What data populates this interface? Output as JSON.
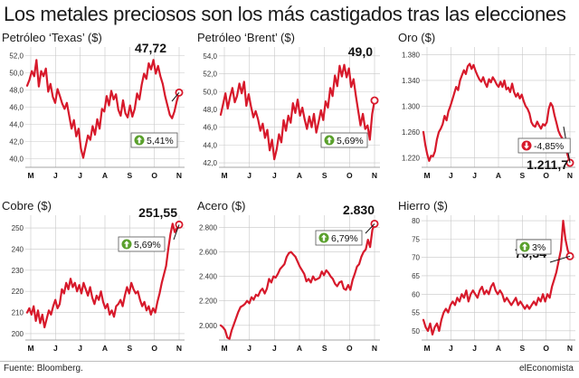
{
  "title": "Los metales preciosos son los más castigados tras las elecciones",
  "footer": {
    "source": "Fuente: Bloomberg.",
    "brand": "elEconomista"
  },
  "colors": {
    "line": "#d7192b",
    "grid": "#c8c8c8",
    "badge_up": "#5aa02c",
    "badge_down": "#d7192b"
  },
  "chart_data": [
    {
      "type": "line",
      "title": "Petróleo ‘Texas’ ($)",
      "x_ticks": [
        "M",
        "J",
        "J",
        "A",
        "S",
        "O",
        "N"
      ],
      "y_ticks": [
        "40,0",
        "42,0",
        "44,0",
        "46,0",
        "48,0",
        "50,0",
        "52,0"
      ],
      "ylim": [
        39,
        53
      ],
      "callout": "47,72",
      "badge": {
        "text": "5,41%",
        "direction": "up"
      },
      "series": [
        {
          "values": [
            48.5,
            49.2,
            50.2,
            49.6,
            51.5,
            48.4,
            50.2,
            49.6,
            50.5,
            47.8,
            48.7,
            47.2,
            46.5,
            48.1,
            47.3,
            46.4,
            45.8,
            46.5,
            45.0,
            43.5,
            44.5,
            42.6,
            43.5,
            41.2,
            40.1,
            41.4,
            42.7,
            42.2,
            43.8,
            42.8,
            44.6,
            43.5,
            45.8,
            45.5,
            47.3,
            46.2,
            47.9,
            46.9,
            47.5,
            45.7,
            45.0,
            46.8,
            45.3,
            44.8,
            46.2,
            44.9,
            45.8,
            47.6,
            46.9,
            48.6,
            49.9,
            49.3,
            51.1,
            50.4,
            51.5,
            49.9,
            50.8,
            49.6,
            48.7,
            47.3,
            46.2,
            45.1,
            44.7,
            45.5,
            46.7,
            47.7
          ]
        }
      ]
    },
    {
      "type": "line",
      "title": "Petróleo ‘Brent’ ($)",
      "x_ticks": [
        "M",
        "J",
        "J",
        "A",
        "S",
        "O",
        "N"
      ],
      "y_ticks": [
        "42,0",
        "44,0",
        "46,0",
        "48,0",
        "50,0",
        "52,0",
        "54,0"
      ],
      "ylim": [
        41.5,
        55
      ],
      "callout": "49,0",
      "badge": {
        "text": "5,69%",
        "direction": "up"
      },
      "series": [
        {
          "values": [
            47.4,
            48.6,
            49.8,
            48.1,
            49.4,
            50.4,
            48.8,
            49.5,
            50.9,
            49.8,
            51.1,
            48.4,
            49.7,
            48.3,
            47.1,
            47.8,
            46.9,
            45.6,
            46.4,
            44.8,
            45.7,
            43.4,
            44.6,
            42.4,
            43.5,
            45.2,
            44.3,
            46.8,
            45.6,
            47.3,
            46.5,
            48.7,
            47.6,
            49.1,
            47.3,
            48.2,
            46.9,
            45.8,
            47.2,
            46.0,
            47.5,
            45.4,
            46.6,
            47.9,
            46.8,
            48.9,
            48.2,
            50.4,
            49.5,
            51.8,
            50.6,
            52.9,
            51.7,
            53.0,
            51.6,
            52.6,
            50.5,
            51.4,
            49.5,
            47.8,
            46.2,
            47.5,
            45.8,
            46.2,
            44.6,
            47.5,
            49.0
          ]
        }
      ]
    },
    {
      "type": "line",
      "title": "Oro ($)",
      "x_ticks": [
        "M",
        "J",
        "J",
        "A",
        "S",
        "O",
        "N"
      ],
      "y_ticks": [
        "1.220",
        "1.260",
        "1.300",
        "1.340",
        "1.380"
      ],
      "ylim": [
        1205,
        1392
      ],
      "callout": "1.211,7",
      "badge": {
        "text": "-4,85%",
        "direction": "down"
      },
      "series": [
        {
          "values": [
            1260,
            1240,
            1225,
            1215,
            1223,
            1222,
            1230,
            1248,
            1260,
            1265,
            1272,
            1285,
            1278,
            1292,
            1300,
            1310,
            1320,
            1330,
            1325,
            1340,
            1348,
            1356,
            1350,
            1362,
            1366,
            1358,
            1364,
            1355,
            1348,
            1342,
            1338,
            1345,
            1336,
            1330,
            1342,
            1337,
            1345,
            1340,
            1334,
            1330,
            1338,
            1330,
            1340,
            1326,
            1329,
            1322,
            1335,
            1322,
            1315,
            1320,
            1312,
            1318,
            1308,
            1300,
            1296,
            1289,
            1275,
            1270,
            1268,
            1276,
            1270,
            1265,
            1272,
            1270,
            1275,
            1296,
            1305,
            1300,
            1286,
            1274,
            1262,
            1255,
            1250,
            1240,
            1232,
            1222,
            1212
          ]
        }
      ]
    },
    {
      "type": "line",
      "title": "Cobre ($)",
      "x_ticks": [
        "M",
        "J",
        "J",
        "A",
        "S",
        "O",
        "N"
      ],
      "y_ticks": [
        "200",
        "210",
        "220",
        "230",
        "240",
        "250"
      ],
      "ylim": [
        197,
        256
      ],
      "callout": "251,55",
      "badge": {
        "text": "5,69%",
        "direction": "up"
      },
      "series": [
        {
          "values": [
            210,
            212,
            209,
            213,
            206,
            211,
            205,
            209,
            203,
            207,
            211,
            209,
            213,
            216,
            212,
            214,
            221,
            219,
            224,
            221,
            226,
            222,
            224,
            220,
            223,
            219,
            224,
            221,
            218,
            222,
            217,
            214,
            218,
            216,
            220,
            215,
            212,
            214,
            209,
            211,
            208,
            213,
            214,
            216,
            213,
            218,
            222,
            219,
            224,
            221,
            219,
            220,
            216,
            213,
            215,
            211,
            213,
            209,
            212,
            210,
            215,
            219,
            224,
            228,
            232,
            240,
            247,
            252,
            248,
            250,
            251.55
          ]
        }
      ]
    },
    {
      "type": "line",
      "title": "Acero ($)",
      "x_ticks": [
        "M",
        "J",
        "J",
        "A",
        "S",
        "O",
        "N"
      ],
      "y_ticks": [
        "2.000",
        "2.200",
        "2.400",
        "2.600",
        "2.800"
      ],
      "ylim": [
        1880,
        2900
      ],
      "callout": "2.830",
      "badge": {
        "text": "6,79%",
        "direction": "up"
      },
      "series": [
        {
          "values": [
            2000,
            1985,
            1960,
            1900,
            1890,
            1960,
            2010,
            2060,
            2110,
            2150,
            2160,
            2175,
            2200,
            2180,
            2230,
            2210,
            2250,
            2240,
            2280,
            2300,
            2260,
            2300,
            2380,
            2350,
            2400,
            2390,
            2420,
            2460,
            2480,
            2500,
            2560,
            2590,
            2600,
            2580,
            2560,
            2520,
            2480,
            2450,
            2420,
            2360,
            2380,
            2350,
            2400,
            2370,
            2380,
            2390,
            2440,
            2410,
            2450,
            2430,
            2400,
            2380,
            2340,
            2320,
            2350,
            2360,
            2300,
            2290,
            2330,
            2290,
            2370,
            2420,
            2480,
            2500,
            2560,
            2600,
            2620,
            2700,
            2640,
            2780,
            2830
          ]
        }
      ]
    },
    {
      "type": "line",
      "title": "Hierro ($)",
      "x_ticks": [
        "M",
        "J",
        "J",
        "A",
        "S",
        "O",
        "N"
      ],
      "y_ticks": [
        "50",
        "55",
        "60",
        "65",
        "70",
        "75",
        "80"
      ],
      "ylim": [
        47.5,
        81.5
      ],
      "callout": "70,34",
      "badge": {
        "text": "3%",
        "direction": "up"
      },
      "series": [
        {
          "values": [
            53,
            51,
            50,
            52,
            49,
            51,
            52,
            50,
            53,
            55,
            56,
            55,
            57,
            58,
            57,
            59,
            58,
            60,
            59,
            61,
            58,
            60,
            61,
            60,
            59,
            61,
            62,
            60,
            61,
            60,
            62,
            63,
            61,
            60,
            61,
            60,
            58,
            59,
            58,
            57,
            58,
            59,
            57,
            58,
            57,
            56,
            57,
            56,
            57,
            58,
            57,
            59,
            58,
            60,
            58,
            60,
            59,
            62,
            64,
            66,
            69,
            72,
            80,
            75,
            72,
            70.34
          ]
        }
      ]
    }
  ]
}
